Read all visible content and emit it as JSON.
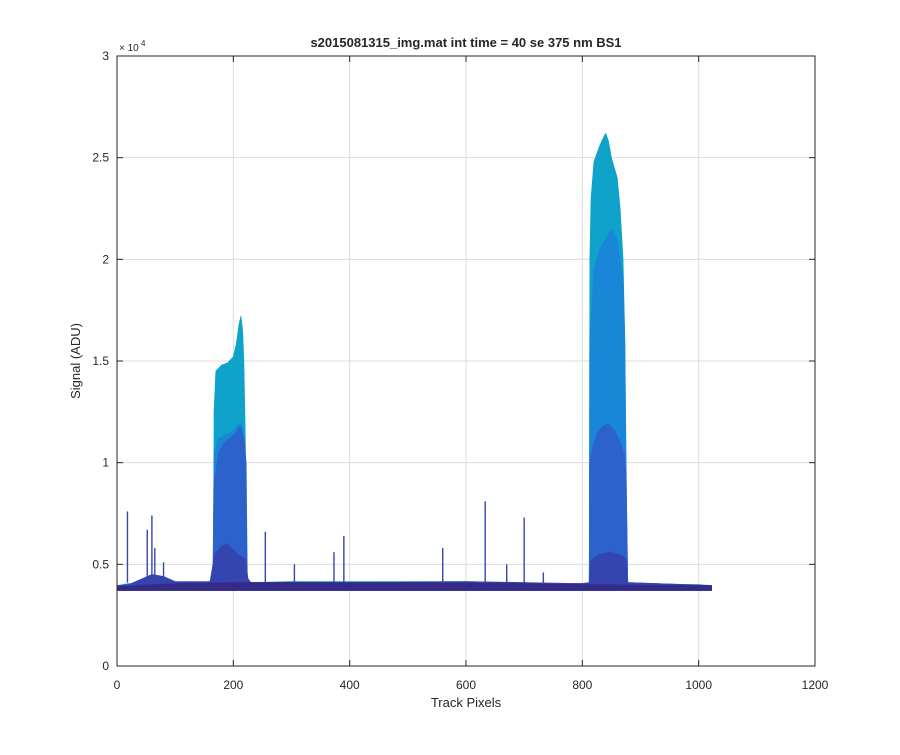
{
  "chart_data": {
    "type": "area",
    "title": "s2015081315_img.mat int time = 40 se  375 nm BS1",
    "xlabel": "Track Pixels",
    "ylabel": "Signal (ADU)",
    "xlim": [
      0,
      1200
    ],
    "ylim": [
      0,
      30000
    ],
    "x_ticks": [
      0,
      200,
      400,
      600,
      800,
      1000,
      1200
    ],
    "x_tick_labels": [
      "0",
      "200",
      "400",
      "600",
      "800",
      "1000",
      "1200"
    ],
    "y_ticks": [
      0,
      5000,
      10000,
      15000,
      20000,
      25000,
      30000
    ],
    "y_tick_labels": [
      "0",
      "0.5",
      "1",
      "1.5",
      "2",
      "2.5",
      "3"
    ],
    "y_exponent_label": "× 10",
    "y_exponent_power": "4",
    "grid": true,
    "series": [
      {
        "color": "#0fa3cc",
        "x": [
          0,
          20,
          160,
          166,
          167,
          170,
          180,
          190,
          200,
          205,
          210,
          213,
          216,
          218,
          220,
          222,
          223,
          230,
          300,
          400,
          500,
          600,
          700,
          780,
          810,
          812,
          813,
          815,
          820,
          830,
          840,
          845,
          850,
          860,
          865,
          870,
          873,
          875,
          878,
          900,
          1000,
          1022
        ],
        "y": [
          3950,
          4050,
          4100,
          4150,
          12500,
          14500,
          14800,
          14900,
          15200,
          15800,
          16800,
          17200,
          16500,
          15000,
          12000,
          8000,
          4200,
          4100,
          4150,
          4150,
          4150,
          4150,
          4100,
          4000,
          3950,
          4100,
          20000,
          23000,
          24800,
          25600,
          26200,
          25800,
          25000,
          24000,
          22500,
          20000,
          16000,
          8000,
          4100,
          4050,
          4000,
          3950
        ]
      },
      {
        "color": "#1a86d8",
        "x": [
          0,
          165,
          167,
          175,
          190,
          200,
          210,
          215,
          220,
          223,
          230,
          800,
          812,
          813,
          820,
          830,
          840,
          850,
          860,
          870,
          873,
          876,
          878,
          1022
        ],
        "y": [
          3950,
          4150,
          10500,
          11200,
          11400,
          11600,
          11900,
          11800,
          11000,
          4200,
          4100,
          4050,
          4100,
          16000,
          19500,
          20500,
          21000,
          21500,
          21000,
          19000,
          16000,
          8000,
          4100,
          3950
        ]
      },
      {
        "color": "#2c62cc",
        "x": [
          0,
          165,
          167,
          175,
          185,
          195,
          205,
          212,
          218,
          222,
          224,
          230,
          800,
          812,
          813,
          818,
          825,
          835,
          845,
          855,
          865,
          872,
          875,
          878,
          1022
        ],
        "y": [
          3950,
          4150,
          9000,
          10500,
          11000,
          11200,
          11500,
          11800,
          11200,
          10000,
          4200,
          4100,
          4050,
          4100,
          10000,
          10800,
          11400,
          11800,
          11900,
          11600,
          11000,
          10400,
          9500,
          4100,
          3950
        ]
      },
      {
        "color": "#3545b0",
        "x": [
          0,
          20,
          40,
          60,
          80,
          100,
          160,
          168,
          180,
          190,
          200,
          210,
          220,
          225,
          230,
          300,
          400,
          500,
          600,
          700,
          800,
          812,
          815,
          830,
          850,
          870,
          875,
          878,
          1022
        ],
        "y": [
          3950,
          4000,
          4250,
          4500,
          4400,
          4150,
          4150,
          5500,
          5900,
          6000,
          5700,
          5400,
          5300,
          4300,
          4100,
          4120,
          4100,
          4120,
          4150,
          4100,
          4050,
          4100,
          5200,
          5500,
          5600,
          5400,
          5200,
          4100,
          3950
        ]
      },
      {
        "color": "#352a87",
        "x": [
          0,
          100,
          200,
          300,
          400,
          500,
          600,
          700,
          800,
          900,
          1022
        ],
        "y": [
          3900,
          4050,
          4100,
          4100,
          4100,
          4100,
          4080,
          4050,
          4000,
          3980,
          3950
        ]
      }
    ],
    "spikes": [
      {
        "x": 18,
        "y": 7600
      },
      {
        "x": 52,
        "y": 6700
      },
      {
        "x": 60,
        "y": 7400
      },
      {
        "x": 65,
        "y": 5800
      },
      {
        "x": 80,
        "y": 5100
      },
      {
        "x": 255,
        "y": 6600
      },
      {
        "x": 305,
        "y": 5000
      },
      {
        "x": 373,
        "y": 5600
      },
      {
        "x": 390,
        "y": 6400
      },
      {
        "x": 560,
        "y": 5800
      },
      {
        "x": 633,
        "y": 8100
      },
      {
        "x": 670,
        "y": 5000
      },
      {
        "x": 700,
        "y": 7300
      },
      {
        "x": 733,
        "y": 4600
      }
    ]
  }
}
